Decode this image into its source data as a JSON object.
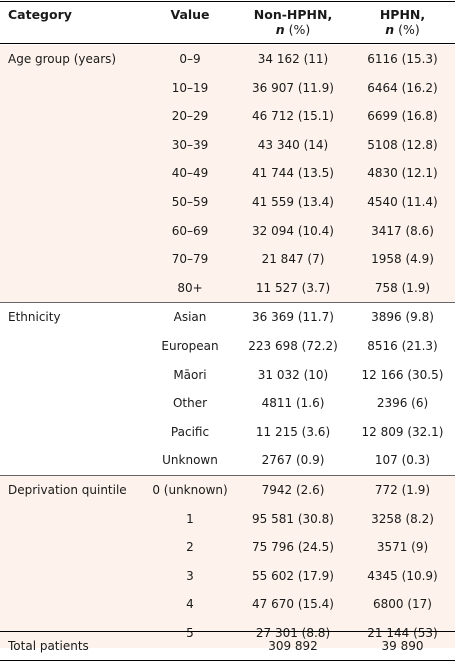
{
  "header": {
    "category": "Category",
    "value": "Value",
    "nonhphn": "Non-HPHN,",
    "hphn": "HPHN,",
    "n_label": "n",
    "pct_label": " (%)"
  },
  "colors": {
    "band": "#fdf3ec",
    "rule": "#000000"
  },
  "groups": [
    {
      "label": "Age group (years)",
      "rows": [
        {
          "value": "0–9",
          "nonhphn": "34 162 (11)",
          "hphn": "6116 (15.3)"
        },
        {
          "value": "10–19",
          "nonhphn": "36 907 (11.9)",
          "hphn": "6464 (16.2)"
        },
        {
          "value": "20–29",
          "nonhphn": "46 712 (15.1)",
          "hphn": "6699 (16.8)"
        },
        {
          "value": "30–39",
          "nonhphn": "43 340 (14)",
          "hphn": "5108 (12.8)"
        },
        {
          "value": "40–49",
          "nonhphn": "41 744 (13.5)",
          "hphn": "4830 (12.1)"
        },
        {
          "value": "50–59",
          "nonhphn": "41 559 (13.4)",
          "hphn": "4540 (11.4)"
        },
        {
          "value": "60–69",
          "nonhphn": "32 094 (10.4)",
          "hphn": "3417 (8.6)"
        },
        {
          "value": "70–79",
          "nonhphn": "21 847 (7)",
          "hphn": "1958 (4.9)"
        },
        {
          "value": "80+",
          "nonhphn": "11 527 (3.7)",
          "hphn": "758 (1.9)"
        }
      ]
    },
    {
      "label": "Ethnicity",
      "rows": [
        {
          "value": "Asian",
          "nonhphn": "36 369 (11.7)",
          "hphn": "3896 (9.8)"
        },
        {
          "value": "European",
          "nonhphn": "223 698 (72.2)",
          "hphn": "8516 (21.3)"
        },
        {
          "value": "Māori",
          "nonhphn": "31 032 (10)",
          "hphn": "12 166 (30.5)"
        },
        {
          "value": "Other",
          "nonhphn": "4811 (1.6)",
          "hphn": "2396 (6)"
        },
        {
          "value": "Pacific",
          "nonhphn": "11 215 (3.6)",
          "hphn": "12 809 (32.1)"
        },
        {
          "value": "Unknown",
          "nonhphn": "2767 (0.9)",
          "hphn": "107 (0.3)"
        }
      ]
    },
    {
      "label": "Deprivation quintile",
      "rows": [
        {
          "value": "0 (unknown)",
          "nonhphn": "7942 (2.6)",
          "hphn": "772 (1.9)"
        },
        {
          "value": "1",
          "nonhphn": "95 581 (30.8)",
          "hphn": "3258 (8.2)"
        },
        {
          "value": "2",
          "nonhphn": "75 796 (24.5)",
          "hphn": "3571 (9)"
        },
        {
          "value": "3",
          "nonhphn": "55 602 (17.9)",
          "hphn": "4345 (10.9)"
        },
        {
          "value": "4",
          "nonhphn": "47 670 (15.4)",
          "hphn": "6800 (17)"
        },
        {
          "value": "5",
          "nonhphn": "27 301 (8.8)",
          "hphn": "21 144 (53)"
        }
      ]
    }
  ],
  "total": {
    "label": "Total patients",
    "nonhphn": "309 892",
    "hphn": "39 890"
  }
}
